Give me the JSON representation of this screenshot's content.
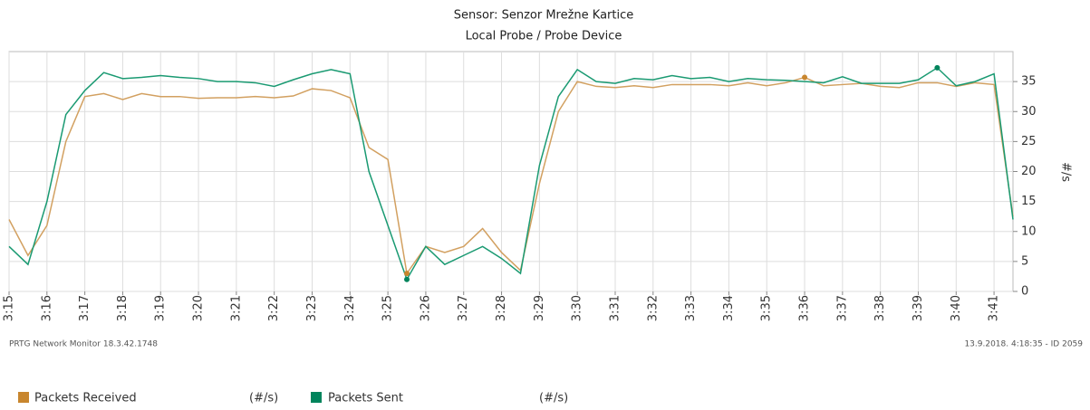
{
  "chart_data": {
    "type": "line",
    "title": "Sensor: Senzor Mrežne Kartice",
    "subtitle": "Local Probe / Probe Device",
    "ylabel": "#/s",
    "footer_left": "PRTG Network Monitor 18.3.42.1748",
    "footer_right": "13.9.2018. 4:18:35 - ID 2059",
    "x": [
      15,
      15.5,
      16,
      16.5,
      17,
      17.5,
      18,
      18.5,
      19,
      19.5,
      20,
      20.5,
      21,
      21.5,
      22,
      22.5,
      23,
      23.5,
      24,
      24.5,
      25,
      25.5,
      26,
      26.5,
      27,
      27.5,
      28,
      28.5,
      29,
      29.5,
      30,
      30.5,
      31,
      31.5,
      32,
      32.5,
      33,
      33.5,
      34,
      34.5,
      35,
      35.5,
      36,
      36.5,
      37,
      37.5,
      38,
      38.5,
      39,
      39.5,
      40,
      40.5,
      41,
      41.5
    ],
    "series": [
      {
        "name": "Packets Received",
        "unit": "(#/s)",
        "color": "#d2a060",
        "marker_color": "#c8862e",
        "values": [
          12,
          6,
          11,
          25,
          32.5,
          33,
          32,
          33,
          32.5,
          32.5,
          32.2,
          32.3,
          32.3,
          32.5,
          32.3,
          32.6,
          33.8,
          33.5,
          32.3,
          24,
          22,
          3,
          7.5,
          6.5,
          7.5,
          10.5,
          6.5,
          3.5,
          18,
          30,
          35,
          34.2,
          34,
          34.3,
          34,
          34.5,
          34.5,
          34.5,
          34.3,
          34.8,
          34.3,
          34.8,
          35.7,
          34.3,
          34.5,
          34.7,
          34.2,
          34,
          34.8,
          34.8,
          34.2,
          34.8,
          34.5,
          12.5
        ]
      },
      {
        "name": "Packets Sent",
        "unit": "(#/s)",
        "color": "#1a9a72",
        "marker_color": "#00845c",
        "values": [
          7.5,
          4.5,
          15,
          29.5,
          33.5,
          36.5,
          35.5,
          35.7,
          36,
          35.7,
          35.5,
          35,
          35,
          34.8,
          34.2,
          35.3,
          36.3,
          37,
          36.3,
          20,
          11,
          2,
          7.5,
          4.5,
          6,
          7.5,
          5.5,
          3,
          21,
          32.5,
          37,
          35,
          34.7,
          35.5,
          35.3,
          36,
          35.5,
          35.7,
          35,
          35.5,
          35.3,
          35.2,
          35,
          34.8,
          35.8,
          34.7,
          34.7,
          34.7,
          35.3,
          37.3,
          34.3,
          35,
          36.3,
          12
        ]
      }
    ],
    "xlim": [
      15,
      41.5
    ],
    "xticks": [
      {
        "value": 15,
        "label": "3:15"
      },
      {
        "value": 16,
        "label": "3:16"
      },
      {
        "value": 17,
        "label": "3:17"
      },
      {
        "value": 18,
        "label": "3:18"
      },
      {
        "value": 19,
        "label": "3:19"
      },
      {
        "value": 20,
        "label": "3:20"
      },
      {
        "value": 21,
        "label": "3:21"
      },
      {
        "value": 22,
        "label": "3:22"
      },
      {
        "value": 23,
        "label": "3:23"
      },
      {
        "value": 24,
        "label": "3:24"
      },
      {
        "value": 25,
        "label": "3:25"
      },
      {
        "value": 26,
        "label": "3:26"
      },
      {
        "value": 27,
        "label": "3:27"
      },
      {
        "value": 28,
        "label": "3:28"
      },
      {
        "value": 29,
        "label": "3:29"
      },
      {
        "value": 30,
        "label": "3:30"
      },
      {
        "value": 31,
        "label": "3:31"
      },
      {
        "value": 32,
        "label": "3:32"
      },
      {
        "value": 33,
        "label": "3:33"
      },
      {
        "value": 34,
        "label": "3:34"
      },
      {
        "value": 35,
        "label": "3:35"
      },
      {
        "value": 36,
        "label": "3:36"
      },
      {
        "value": 37,
        "label": "3:37"
      },
      {
        "value": 38,
        "label": "3:38"
      },
      {
        "value": 39,
        "label": "3:39"
      },
      {
        "value": 40,
        "label": "3:40"
      },
      {
        "value": 41,
        "label": "3:41"
      }
    ],
    "ylim": [
      0,
      40
    ],
    "yticks": [
      0,
      5,
      10,
      15,
      20,
      25,
      30,
      35
    ],
    "grid": true
  }
}
